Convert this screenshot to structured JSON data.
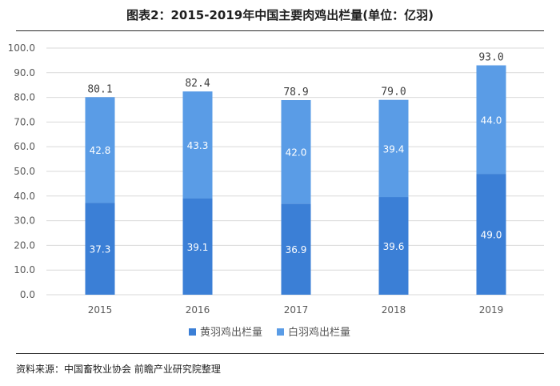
{
  "title": "图表2：2015-2019年中国主要肉鸡出栏量(单位：亿羽)",
  "source": "资料来源：中国畜牧业协会 前瞻产业研究院整理",
  "colors": {
    "yellow_feather": "#3b7fd6",
    "white_feather": "#5a9ce6",
    "grid": "#d9d9d9"
  },
  "chart_data": {
    "type": "bar",
    "stacked": true,
    "categories": [
      "2015",
      "2016",
      "2017",
      "2018",
      "2019"
    ],
    "series": [
      {
        "name": "黄羽鸡出栏量",
        "values": [
          37.3,
          39.1,
          36.9,
          39.6,
          49.0
        ],
        "labels": [
          "37.3",
          "39.1",
          "36.9",
          "39.6",
          "49.0"
        ]
      },
      {
        "name": "白羽鸡出栏量",
        "values": [
          42.8,
          43.3,
          42.0,
          39.4,
          44.0
        ],
        "labels": [
          "42.8",
          "43.3",
          "42.0",
          "39.4",
          "44.0"
        ]
      }
    ],
    "totals": [
      80.1,
      82.4,
      78.9,
      79.0,
      93.0
    ],
    "total_labels": [
      "80.1",
      "82.4",
      "78.9",
      "79.0",
      "93.0"
    ],
    "ylim": [
      0,
      100
    ],
    "yticks": [
      "0.0",
      "10.0",
      "20.0",
      "30.0",
      "40.0",
      "50.0",
      "60.0",
      "70.0",
      "80.0",
      "90.0",
      "100.0"
    ],
    "grid": true,
    "legend": "bottom"
  }
}
